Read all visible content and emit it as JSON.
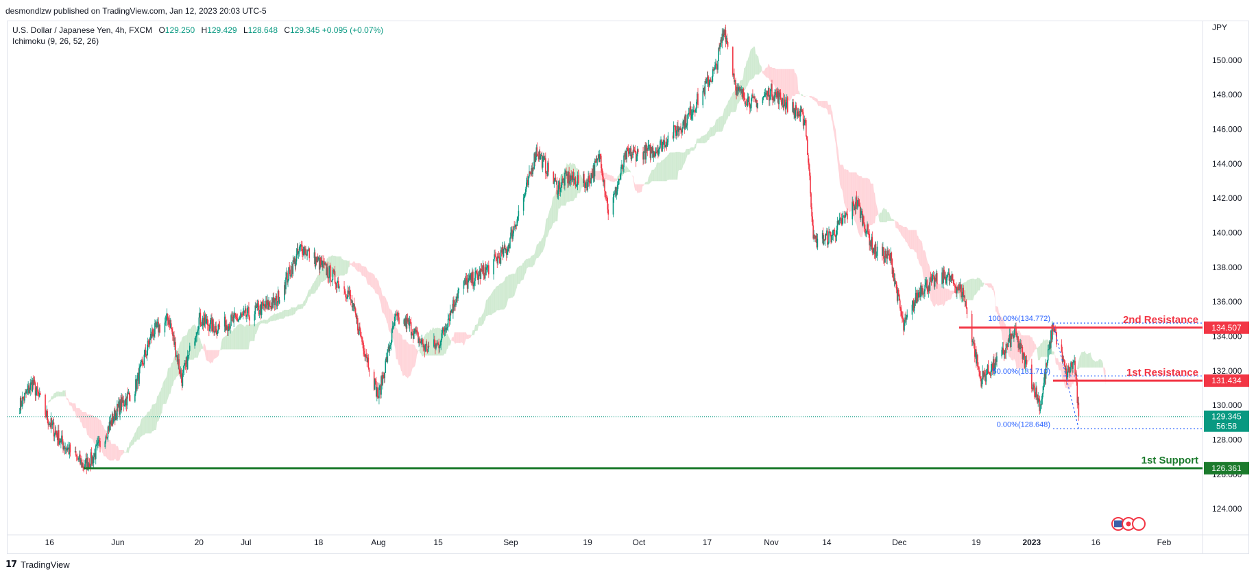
{
  "header": {
    "publisher_line": "desmondlzw published on TradingView.com, Jan 12, 2023 20:03 UTC-5"
  },
  "legend": {
    "symbol": "U.S. Dollar / Japanese Yen, 4h, FXCM",
    "open_label": "O",
    "open": "129.250",
    "high_label": "H",
    "high": "129.429",
    "low_label": "L",
    "low": "128.648",
    "close_label": "C",
    "close": "129.345",
    "change": "+0.095 (+0.07%)",
    "indicator": "Ichimoku (9, 26, 52, 26)"
  },
  "footer": {
    "brand": "TradingView",
    "logo": "tradingview-logo-icon"
  },
  "colors": {
    "up": "#089981",
    "down": "#f23645",
    "resistance": "#f23645",
    "support": "#1b7a2c",
    "cloud_bull": "#c8e6c9",
    "cloud_bear": "#ffcdd2",
    "fib": "#2962ff"
  },
  "chart_data": {
    "type": "candlestick",
    "currency": "JPY",
    "ylim": [
      122.5,
      152.3
    ],
    "y_ticks": [
      "124.000",
      "126.000",
      "128.000",
      "130.000",
      "132.000",
      "134.000",
      "136.000",
      "138.000",
      "140.000",
      "142.000",
      "144.000",
      "146.000",
      "148.000",
      "150.000"
    ],
    "x_ticks": [
      "16",
      "Jun",
      "20",
      "Jul",
      "18",
      "Aug",
      "15",
      "Sep",
      "19",
      "Oct",
      "17",
      "Nov",
      "14",
      "Dec",
      "19",
      "2023",
      "16",
      "Feb"
    ],
    "x_tick_dates": [
      "2022-05-16",
      "2022-06-01",
      "2022-06-20",
      "2022-07-01",
      "2022-07-18",
      "2022-08-01",
      "2022-08-15",
      "2022-09-01",
      "2022-09-19",
      "2022-10-01",
      "2022-10-17",
      "2022-11-01",
      "2022-11-14",
      "2022-12-01",
      "2022-12-19",
      "2023-01-01",
      "2023-01-16",
      "2023-02-01"
    ],
    "price_path": [
      [
        "2022-05-09",
        130.0
      ],
      [
        "2022-05-12",
        131.3
      ],
      [
        "2022-05-16",
        129.0
      ],
      [
        "2022-05-19",
        127.8
      ],
      [
        "2022-05-24",
        126.5
      ],
      [
        "2022-05-26",
        126.9
      ],
      [
        "2022-06-01",
        129.8
      ],
      [
        "2022-06-05",
        131.0
      ],
      [
        "2022-06-09",
        134.2
      ],
      [
        "2022-06-13",
        135.0
      ],
      [
        "2022-06-16",
        131.5
      ],
      [
        "2022-06-20",
        135.0
      ],
      [
        "2022-06-24",
        134.5
      ],
      [
        "2022-07-01",
        135.2
      ],
      [
        "2022-07-08",
        136.0
      ],
      [
        "2022-07-14",
        139.2
      ],
      [
        "2022-07-20",
        137.8
      ],
      [
        "2022-07-25",
        136.5
      ],
      [
        "2022-08-01",
        130.5
      ],
      [
        "2022-08-05",
        135.0
      ],
      [
        "2022-08-08",
        134.7
      ],
      [
        "2022-08-12",
        133.3
      ],
      [
        "2022-08-15",
        133.5
      ],
      [
        "2022-08-20",
        136.8
      ],
      [
        "2022-08-26",
        137.8
      ],
      [
        "2022-08-31",
        139.0
      ],
      [
        "2022-09-05",
        142.8
      ],
      [
        "2022-09-07",
        144.8
      ],
      [
        "2022-09-12",
        142.6
      ],
      [
        "2022-09-14",
        143.2
      ],
      [
        "2022-09-19",
        142.9
      ],
      [
        "2022-09-22",
        144.5
      ],
      [
        "2022-09-24",
        141.0
      ],
      [
        "2022-09-28",
        144.5
      ],
      [
        "2022-10-05",
        144.8
      ],
      [
        "2022-10-12",
        146.5
      ],
      [
        "2022-10-19",
        149.5
      ],
      [
        "2022-10-21",
        151.9
      ],
      [
        "2022-10-24",
        148.2
      ],
      [
        "2022-10-28",
        147.5
      ],
      [
        "2022-11-01",
        148.2
      ],
      [
        "2022-11-06",
        147.2
      ],
      [
        "2022-11-09",
        146.5
      ],
      [
        "2022-11-11",
        139.5
      ],
      [
        "2022-11-15",
        139.8
      ],
      [
        "2022-11-21",
        141.8
      ],
      [
        "2022-11-25",
        139.0
      ],
      [
        "2022-11-29",
        138.5
      ],
      [
        "2022-12-02",
        134.5
      ],
      [
        "2022-12-06",
        136.8
      ],
      [
        "2022-12-12",
        137.5
      ],
      [
        "2022-12-16",
        136.5
      ],
      [
        "2022-12-20",
        131.5
      ],
      [
        "2022-12-24",
        132.5
      ],
      [
        "2022-12-28",
        134.2
      ],
      [
        "2023-01-03",
        130.0
      ],
      [
        "2023-01-06",
        134.7
      ],
      [
        "2023-01-09",
        131.8
      ],
      [
        "2023-01-11",
        132.5
      ],
      [
        "2023-01-12",
        129.345
      ]
    ],
    "annotations": [
      {
        "type": "hline",
        "label": "2nd Resistance",
        "tag": "134.507",
        "value": 134.507,
        "color": "#f23645"
      },
      {
        "type": "hline",
        "label": "1st Resistance",
        "tag": "131.434",
        "value": 131.434,
        "color": "#f23645"
      },
      {
        "type": "hline",
        "label": "1st Support",
        "tag": "126.361",
        "value": 126.361,
        "color": "#1b7a2c"
      }
    ],
    "fibonacci": [
      {
        "label": "100.00%(134.772)",
        "value": 134.772
      },
      {
        "label": "50.00%(131.710)",
        "value": 131.71
      },
      {
        "label": "0.00%(128.648)",
        "value": 128.648
      }
    ],
    "last_price": {
      "value": 129.345,
      "tag": "129.345",
      "countdown": "56:58"
    }
  }
}
